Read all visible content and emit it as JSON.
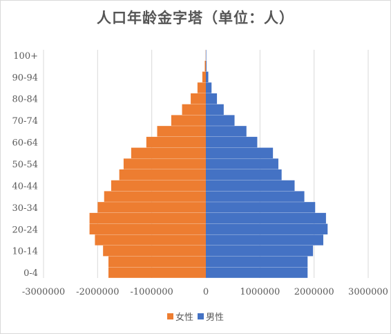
{
  "chart_data": {
    "type": "bar",
    "orientation": "horizontal",
    "title": "人口年龄金字塔（单位：人）",
    "xlim": [
      -3000000,
      3000000
    ],
    "x_ticks": [
      -3000000,
      -2000000,
      -1000000,
      0,
      1000000,
      2000000,
      3000000
    ],
    "x_tick_labels": [
      "-3000000",
      "-2000000",
      "-1000000",
      "0",
      "1000000",
      "2000000",
      "3000000"
    ],
    "y_tick_labels": [
      "0-4",
      "10-14",
      "20-24",
      "30-34",
      "40-44",
      "50-54",
      "60-64",
      "70-74",
      "80-84",
      "90-94",
      "100+"
    ],
    "categories": [
      "0",
      "5",
      "10",
      "15",
      "20",
      "25",
      "30",
      "35",
      "40",
      "45",
      "50",
      "55",
      "60",
      "65",
      "70",
      "75",
      "80",
      "85",
      "90",
      "95",
      "100+"
    ],
    "grid": "vertical",
    "legend_position": "bottom",
    "series": [
      {
        "name": "女性",
        "color": "#ED7D31",
        "values": [
          -1800000,
          -1800000,
          -1900000,
          -2050000,
          -2150000,
          -2150000,
          -2000000,
          -1880000,
          -1750000,
          -1600000,
          -1520000,
          -1380000,
          -1100000,
          -900000,
          -640000,
          -440000,
          -280000,
          -155000,
          -65000,
          -20000,
          -3000
        ]
      },
      {
        "name": "男性",
        "color": "#4472C4",
        "values": [
          1880000,
          1880000,
          1980000,
          2170000,
          2250000,
          2220000,
          2020000,
          1820000,
          1640000,
          1400000,
          1340000,
          1240000,
          950000,
          750000,
          530000,
          330000,
          205000,
          105000,
          45000,
          12000,
          2000
        ]
      }
    ]
  }
}
